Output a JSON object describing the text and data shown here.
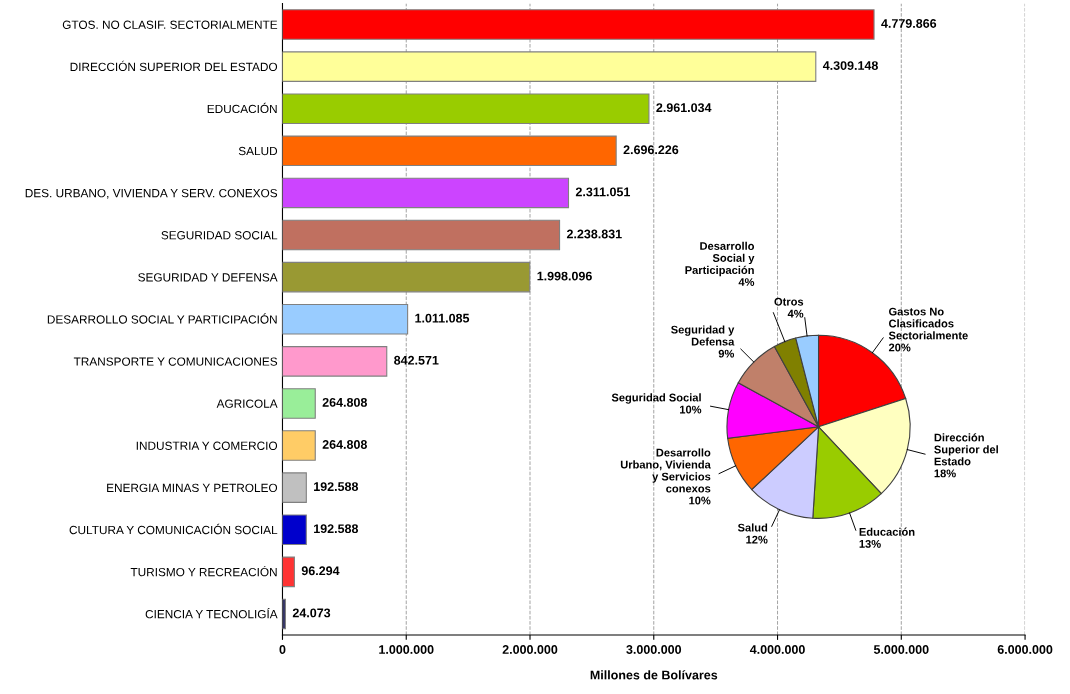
{
  "chart_data": [
    {
      "type": "bar",
      "orientation": "horizontal",
      "xlabel": "Millones de Bolívares",
      "categories": [
        "GTOS. NO CLASIF. SECTORIALMENTE",
        "DIRECCIÓN SUPERIOR DEL ESTADO",
        "EDUCACIÓN",
        "SALUD",
        "DES. URBANO, VIVIENDA Y SERV. CONEXOS",
        "SEGURIDAD SOCIAL",
        "SEGURIDAD Y DEFENSA",
        "DESARROLLO SOCIAL Y PARTICIPACIÓN",
        "TRANSPORTE Y COMUNICACIONES",
        "AGRICOLA",
        "INDUSTRIA Y COMERCIO",
        "ENERGIA MINAS Y PETROLEO",
        "CULTURA Y COMUNICACIÓN SOCIAL",
        "TURISMO Y RECREACIÓN",
        "CIENCIA Y TECNOLIGÍA"
      ],
      "values": [
        4779866,
        4309148,
        2961034,
        2696226,
        2311051,
        2238831,
        1998096,
        1011085,
        842571,
        264808,
        264808,
        192588,
        192588,
        96294,
        24073
      ],
      "value_labels": [
        "4.779.866",
        "4.309.148",
        "2.961.034",
        "2.696.226",
        "2.311.051",
        "2.238.831",
        "1.998.096",
        "1.011.085",
        "842.571",
        "264.808",
        "264.808",
        "192.588",
        "192.588",
        "96.294",
        "24.073"
      ],
      "colors": [
        "#ff0000",
        "#ffff99",
        "#99cc00",
        "#ff6600",
        "#cc44ff",
        "#c07060",
        "#999933",
        "#99ccff",
        "#ff99cc",
        "#99ee99",
        "#ffcc66",
        "#c0c0c0",
        "#0000cc",
        "#ff3333",
        "#333366"
      ],
      "xlim": [
        0,
        6000000
      ],
      "xticks": [
        0,
        {
          "value": 1000000,
          "label": "1.000.000"
        },
        {
          "value": 2000000,
          "label": "2.000.000"
        },
        {
          "value": 3000000,
          "label": "3.000.000"
        },
        {
          "value": 4000000,
          "label": "4.000.000"
        },
        {
          "value": 5000000,
          "label": "5.000.000"
        },
        {
          "value": 6000000,
          "label": "6.000.000"
        }
      ],
      "grid": "x"
    },
    {
      "type": "pie",
      "categories": [
        "Gastos No\nClasificados\nSectorialmente",
        "Dirección\nSuperior del\nEstado",
        "Educación",
        "Salud",
        "Desarrollo\nUrbano, Vivienda\ny Servicios\nconexos",
        "Seguridad Social",
        "Seguridad y\nDefensa",
        "Desarrollo\nSocial y\nParticipación",
        "Otros"
      ],
      "values": [
        20,
        18,
        13,
        12,
        10,
        10,
        9,
        4,
        4
      ],
      "value_labels": [
        "20%",
        "18%",
        "13%",
        "12%",
        "10%",
        "10%",
        "9%",
        "4%",
        "4%"
      ],
      "colors": [
        "#ff0000",
        "#ffffc0",
        "#99cc00",
        "#ccccff",
        "#ff6600",
        "#ff00ff",
        "#c0806a",
        "#808000",
        "#99ccff"
      ]
    }
  ]
}
